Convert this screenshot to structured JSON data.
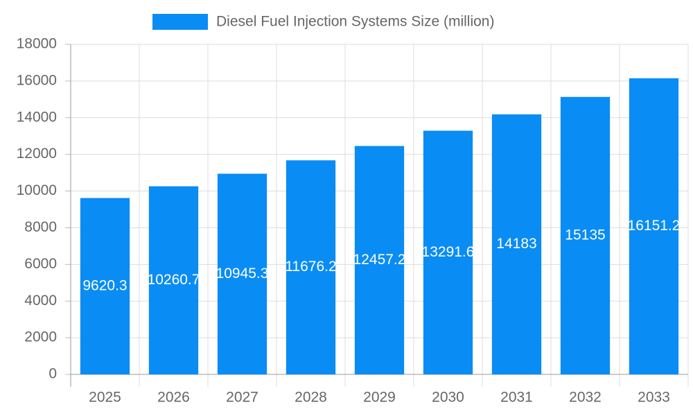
{
  "chart_data": {
    "type": "bar",
    "legend": "Diesel Fuel Injection Systems Size (million)",
    "categories": [
      "2025",
      "2026",
      "2027",
      "2028",
      "2029",
      "2030",
      "2031",
      "2032",
      "2033"
    ],
    "values": [
      9620.3,
      10260.7,
      10945.3,
      11676.2,
      12457.2,
      13291.6,
      14183,
      15135,
      16151.2
    ],
    "color": "#0a8cf5",
    "ylim": [
      0,
      18000
    ],
    "yticks": [
      0,
      2000,
      4000,
      6000,
      8000,
      10000,
      12000,
      14000,
      16000,
      18000
    ],
    "grid": true
  }
}
